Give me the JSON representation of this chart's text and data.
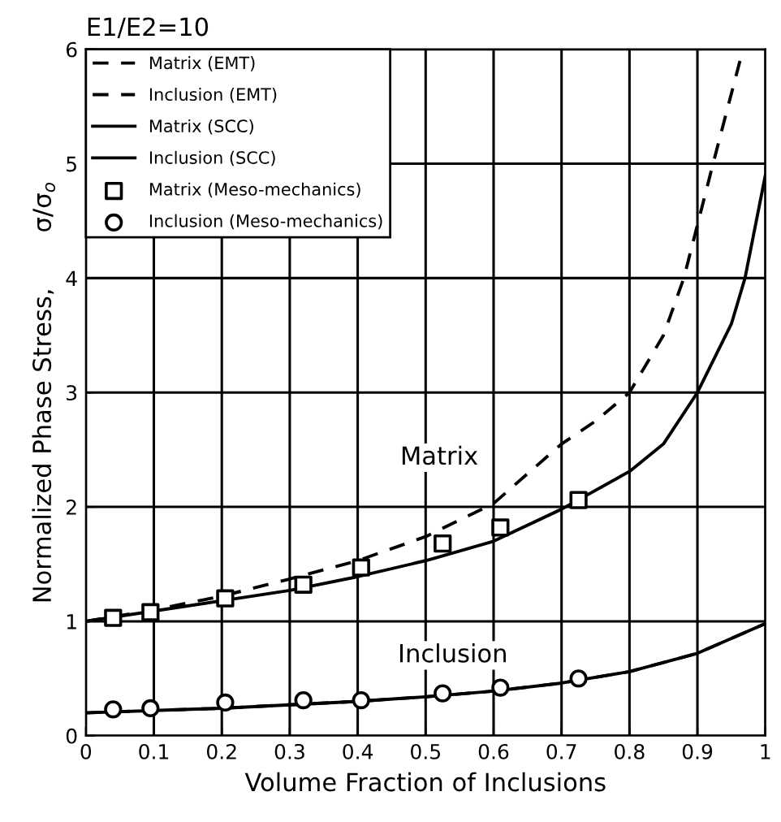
{
  "chart_data": {
    "type": "line",
    "title": "E1/E2=10",
    "xlabel": "Volume Fraction of Inclusions",
    "ylabel": "Normalized Phase Stress,       σ/σ$_{o}$",
    "series": [
      {
        "name": "Matrix (EMT)",
        "line_style": "dashed",
        "color": "#000000",
        "x": [
          0,
          0.1,
          0.2,
          0.3,
          0.4,
          0.5,
          0.6,
          0.7,
          0.75,
          0.8,
          0.85,
          0.88,
          0.923,
          0.967
        ],
        "values": [
          1.0,
          1.1,
          1.22,
          1.37,
          1.53,
          1.74,
          2.03,
          2.55,
          2.75,
          3.0,
          3.5,
          4.0,
          5.0,
          6.0
        ]
      },
      {
        "name": "Inclusion (EMT)",
        "line_style": "dashed",
        "color": "#000000",
        "x": [
          0,
          0.1,
          0.2,
          0.3,
          0.4,
          0.5,
          0.6,
          0.7,
          0.8,
          0.9,
          1.0
        ],
        "values": [
          0.2,
          0.22,
          0.24,
          0.27,
          0.3,
          0.34,
          0.39,
          0.46,
          0.56,
          0.72,
          0.98
        ]
      },
      {
        "name": "Matrix (SCC)",
        "line_style": "solid",
        "color": "#000000",
        "x": [
          0,
          0.1,
          0.2,
          0.3,
          0.4,
          0.5,
          0.6,
          0.7,
          0.8,
          0.85,
          0.9,
          0.95,
          0.97,
          1.0
        ],
        "values": [
          1.0,
          1.09,
          1.18,
          1.27,
          1.39,
          1.53,
          1.7,
          1.98,
          2.31,
          2.55,
          3.0,
          3.6,
          4.0,
          4.9
        ]
      },
      {
        "name": "Inclusion (SCC)",
        "line_style": "solid",
        "color": "#000000",
        "x": [
          0,
          0.1,
          0.2,
          0.3,
          0.4,
          0.5,
          0.6,
          0.7,
          0.8,
          0.9,
          1.0
        ],
        "values": [
          0.2,
          0.22,
          0.24,
          0.27,
          0.3,
          0.34,
          0.39,
          0.46,
          0.56,
          0.72,
          0.98
        ]
      },
      {
        "name": "Matrix (Meso-mechanics)",
        "type": "scatter",
        "marker": "square",
        "color": "#000000",
        "x": [
          0.04,
          0.095,
          0.205,
          0.32,
          0.405,
          0.525,
          0.61,
          0.725
        ],
        "values": [
          1.03,
          1.08,
          1.2,
          1.32,
          1.47,
          1.68,
          1.82,
          2.06
        ]
      },
      {
        "name": "Inclusion (Meso-mechanics)",
        "type": "scatter",
        "marker": "circle",
        "color": "#000000",
        "x": [
          0.04,
          0.095,
          0.205,
          0.32,
          0.405,
          0.525,
          0.61,
          0.725
        ],
        "values": [
          0.23,
          0.24,
          0.29,
          0.31,
          0.31,
          0.37,
          0.42,
          0.5
        ]
      }
    ],
    "annotations": [
      "Matrix",
      "Inclusion"
    ],
    "xlim": [
      0,
      1
    ],
    "ylim": [
      0,
      6
    ],
    "xticks": [
      0,
      0.1,
      0.2,
      0.3,
      0.4,
      0.5,
      0.6,
      0.7,
      0.8,
      0.9,
      1
    ],
    "yticks": [
      0,
      1,
      2,
      3,
      4,
      5,
      6
    ],
    "grid": true,
    "legend": "top left"
  }
}
